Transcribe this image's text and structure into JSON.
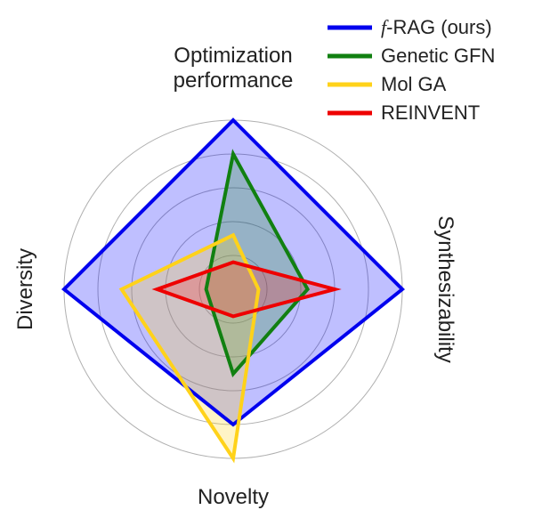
{
  "chart_data": {
    "type": "radar",
    "axes": [
      "Optimization performance",
      "Synthesizability",
      "Novelty",
      "Diversity"
    ],
    "axis_label_lines": {
      "top": [
        "Optimization",
        "performance"
      ],
      "right": "Synthesizability",
      "bottom": "Novelty",
      "left": "Diversity"
    },
    "rlim": [
      0,
      1
    ],
    "grid_rings": [
      0.2,
      0.4,
      0.6,
      0.8,
      1.0
    ],
    "legend_position": "top-right",
    "series": [
      {
        "name": "f-RAG (ours)",
        "name_prefix": "f",
        "name_rest": "-RAG (ours)",
        "color": "#0000ee",
        "fill": "#0000ff",
        "values": [
          1.0,
          1.0,
          0.8,
          1.0
        ]
      },
      {
        "name": "Genetic GFN",
        "color": "#118011",
        "fill": "#1a8a1a",
        "values": [
          0.8,
          0.44,
          0.5,
          0.16
        ]
      },
      {
        "name": "Mol GA",
        "color": "#ffd21a",
        "fill": "#ffd21a",
        "values": [
          0.32,
          0.15,
          1.0,
          0.66
        ]
      },
      {
        "name": "REINVENT",
        "color": "#ee0000",
        "fill": "#ff2020",
        "values": [
          0.16,
          0.6,
          0.16,
          0.45
        ]
      }
    ]
  }
}
